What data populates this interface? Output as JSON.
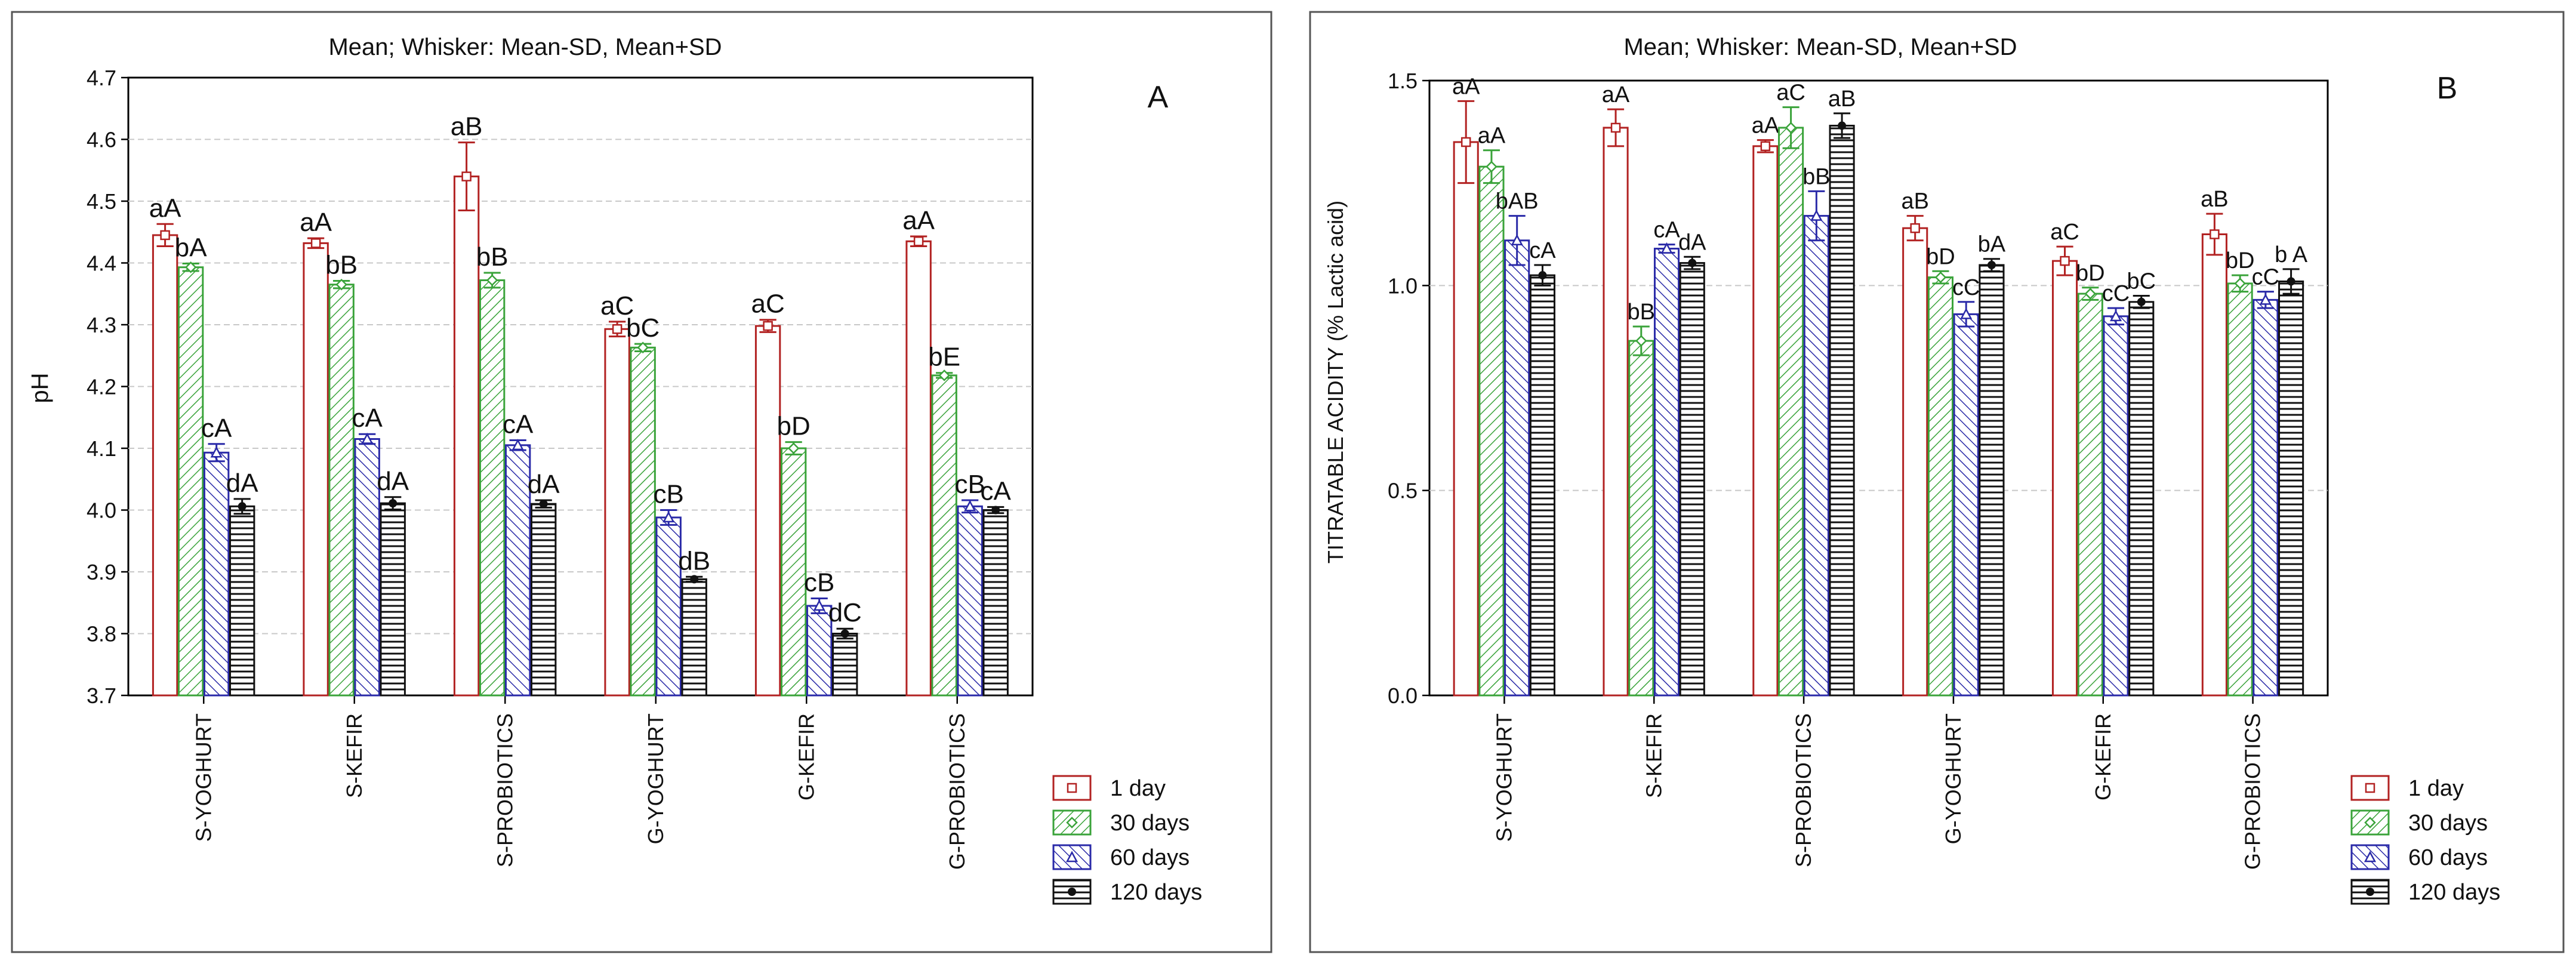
{
  "colors": {
    "1 day": "#b22222",
    "30 days": "#3aa33a",
    "60 days": "#2a2aa8",
    "120 days": "#111111"
  },
  "chart_data": [
    {
      "type": "bar",
      "panel_label": "A",
      "title": "Mean;  Whisker: Mean-SD, Mean+SD",
      "xlabel": "",
      "ylabel": "pH",
      "ylim": [
        3.7,
        4.7
      ],
      "yticks": [
        "3.7",
        "3.8",
        "3.9",
        "4.0",
        "4.1",
        "4.2",
        "4.3",
        "4.4",
        "4.5",
        "4.6",
        "4.7"
      ],
      "grid": true,
      "legend_position": "bottom-right",
      "categories": [
        "S-YOGHURT",
        "S-KEFIR",
        "S-PROBIOTICS",
        "G-YOGHURT",
        "G-KEFIR",
        "G-PROBIOTICS"
      ],
      "series": [
        {
          "name": "1 day",
          "values": [
            4.445,
            4.432,
            4.54,
            4.293,
            4.298,
            4.435
          ],
          "sd": [
            0.018,
            0.008,
            0.055,
            0.012,
            0.01,
            0.008
          ],
          "labels": [
            "aA",
            "aA",
            "aB",
            "aC",
            "aC",
            "aA"
          ]
        },
        {
          "name": "30 days",
          "values": [
            4.393,
            4.365,
            4.372,
            4.263,
            4.1,
            4.218
          ],
          "sd": [
            0.006,
            0.006,
            0.012,
            0.006,
            0.01,
            0.004
          ],
          "labels": [
            "bA",
            "bB",
            "bB",
            "bC",
            "bD",
            "bE"
          ]
        },
        {
          "name": "60 days",
          "values": [
            4.093,
            4.115,
            4.105,
            3.988,
            3.845,
            4.006
          ],
          "sd": [
            0.014,
            0.008,
            0.008,
            0.012,
            0.012,
            0.01
          ],
          "labels": [
            "cA",
            "cA",
            "cA",
            "cB",
            "cB",
            "cB"
          ]
        },
        {
          "name": "120 days",
          "values": [
            4.006,
            4.011,
            4.01,
            3.888,
            3.8,
            4.0
          ],
          "sd": [
            0.012,
            0.01,
            0.006,
            0.004,
            0.008,
            0.005
          ],
          "labels": [
            "dA",
            "dA",
            "dA",
            "dB",
            "dC",
            "cA"
          ]
        }
      ]
    },
    {
      "type": "bar",
      "panel_label": "B",
      "title": "Mean;  Whisker: Mean-SD, Mean+SD",
      "xlabel": "",
      "ylabel": "TITRATABLE ACIDITY (% Lactic acid)",
      "ylim": [
        0.0,
        1.5
      ],
      "yticks": [
        "0.0",
        "0.5",
        "1.0",
        "1.5"
      ],
      "grid": true,
      "legend_position": "bottom-right",
      "categories": [
        "S-YOGHURT",
        "S-KEFIR",
        "S-PROBIOTICS",
        "G-YOGHURT",
        "G-KEFIR",
        "G-PROBIOTICS"
      ],
      "series": [
        {
          "name": "1 day",
          "values": [
            1.35,
            1.385,
            1.34,
            1.14,
            1.06,
            1.125
          ],
          "sd": [
            0.1,
            0.045,
            0.015,
            0.03,
            0.035,
            0.05
          ],
          "labels": [
            "aA",
            "aA",
            "aA",
            "aB",
            "aC",
            "aB"
          ]
        },
        {
          "name": "30 days",
          "values": [
            1.29,
            0.865,
            1.385,
            1.02,
            0.98,
            1.005
          ],
          "sd": [
            0.04,
            0.035,
            0.05,
            0.015,
            0.015,
            0.02
          ],
          "labels": [
            "aA",
            "bB",
            "aC",
            "bD",
            "bD",
            "bD"
          ]
        },
        {
          "name": "60 days",
          "values": [
            1.11,
            1.09,
            1.17,
            0.93,
            0.925,
            0.965
          ],
          "sd": [
            0.06,
            0.01,
            0.06,
            0.03,
            0.02,
            0.02
          ],
          "labels": [
            "bAB",
            "cA",
            "bB",
            "cC",
            "cC",
            "cC"
          ]
        },
        {
          "name": "120 days",
          "values": [
            1.025,
            1.055,
            1.39,
            1.05,
            0.96,
            1.01
          ],
          "sd": [
            0.025,
            0.015,
            0.03,
            0.015,
            0.015,
            0.03
          ],
          "labels": [
            "cA",
            "dA",
            "aB",
            "bA",
            "bC",
            "b A"
          ]
        }
      ]
    }
  ]
}
